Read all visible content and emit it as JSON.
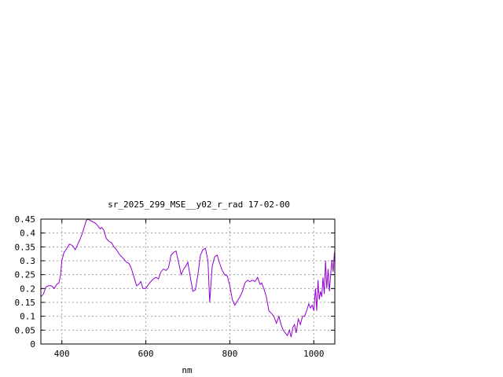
{
  "chart_data": {
    "type": "line",
    "title": "sr_2025_299_MSE__y02_r_rad 17-02-00",
    "xlabel": "nm",
    "ylabel": "",
    "xlim": [
      350,
      1050
    ],
    "ylim": [
      0,
      0.45
    ],
    "grid": true,
    "x_ticks": [
      400,
      600,
      800,
      1000
    ],
    "x_tick_labels": [
      "400",
      "600",
      "800",
      "1000"
    ],
    "y_ticks": [
      0,
      0.05,
      0.1,
      0.15,
      0.2,
      0.25,
      0.3,
      0.35,
      0.4,
      0.45
    ],
    "y_tick_labels": [
      "0",
      "0.05",
      "0.1",
      "0.15",
      "0.2",
      "0.25",
      "0.3",
      "0.35",
      "0.4",
      "0.45"
    ],
    "line_color": "#9400d3",
    "series": [
      {
        "x": [
          350,
          356,
          362,
          368,
          375,
          382,
          388,
          393,
          397,
          400,
          405,
          410,
          418,
          425,
          432,
          438,
          444,
          449,
          454,
          458,
          462,
          468,
          474,
          480,
          486,
          491,
          495,
          500,
          506,
          512,
          518,
          524,
          530,
          536,
          542,
          548,
          554,
          560,
          566,
          572,
          578,
          583,
          588,
          593,
          600,
          606,
          612,
          618,
          624,
          630,
          636,
          642,
          648,
          654,
          660,
          666,
          672,
          678,
          684,
          690,
          695,
          700,
          706,
          712,
          718,
          724,
          730,
          736,
          742,
          748,
          752,
          758,
          764,
          770,
          776,
          782,
          788,
          794,
          800,
          806,
          812,
          818,
          824,
          830,
          836,
          842,
          848,
          854,
          860,
          866,
          872,
          876,
          881,
          887,
          893,
          899,
          905,
          911,
          917,
          922,
          927,
          932,
          937,
          942,
          946,
          950,
          954,
          958,
          963,
          968,
          973,
          978,
          983,
          988,
          992,
          996,
          1000,
          1004,
          1007,
          1010,
          1013,
          1016,
          1019,
          1022,
          1025,
          1028,
          1031,
          1034,
          1037,
          1040,
          1043,
          1046,
          1049
        ],
        "y": [
          0.17,
          0.18,
          0.205,
          0.21,
          0.21,
          0.2,
          0.215,
          0.22,
          0.25,
          0.3,
          0.33,
          0.34,
          0.36,
          0.355,
          0.34,
          0.36,
          0.38,
          0.4,
          0.425,
          0.445,
          0.45,
          0.445,
          0.44,
          0.435,
          0.425,
          0.415,
          0.42,
          0.41,
          0.38,
          0.37,
          0.365,
          0.35,
          0.34,
          0.325,
          0.315,
          0.305,
          0.295,
          0.29,
          0.27,
          0.24,
          0.21,
          0.215,
          0.225,
          0.2,
          0.2,
          0.215,
          0.225,
          0.235,
          0.24,
          0.235,
          0.26,
          0.27,
          0.265,
          0.275,
          0.32,
          0.33,
          0.335,
          0.295,
          0.25,
          0.27,
          0.28,
          0.295,
          0.24,
          0.19,
          0.195,
          0.25,
          0.32,
          0.34,
          0.345,
          0.3,
          0.15,
          0.28,
          0.315,
          0.32,
          0.29,
          0.265,
          0.25,
          0.245,
          0.21,
          0.16,
          0.14,
          0.155,
          0.17,
          0.19,
          0.22,
          0.23,
          0.225,
          0.23,
          0.225,
          0.24,
          0.215,
          0.22,
          0.2,
          0.17,
          0.12,
          0.11,
          0.1,
          0.075,
          0.1,
          0.07,
          0.05,
          0.04,
          0.03,
          0.05,
          0.025,
          0.06,
          0.07,
          0.04,
          0.09,
          0.07,
          0.1,
          0.1,
          0.12,
          0.145,
          0.13,
          0.14,
          0.12,
          0.2,
          0.12,
          0.23,
          0.16,
          0.19,
          0.17,
          0.24,
          0.18,
          0.3,
          0.2,
          0.27,
          0.19,
          0.25,
          0.3,
          0.26,
          0.33
        ]
      }
    ]
  }
}
